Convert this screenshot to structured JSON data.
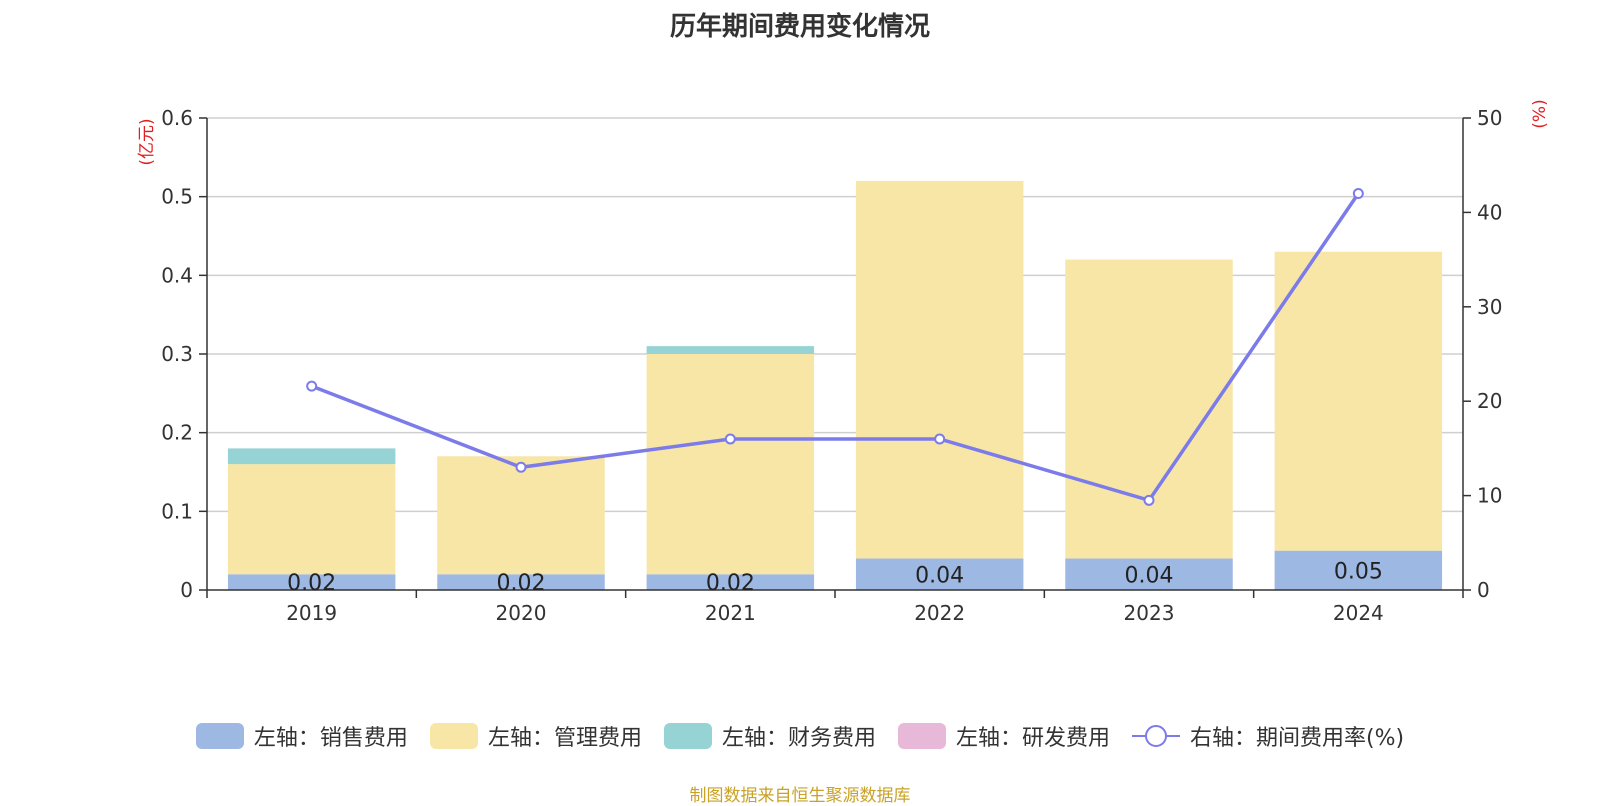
{
  "chart_data": {
    "type": "bar",
    "title": "历年期间费用变化情况",
    "categories": [
      "2019",
      "2020",
      "2021",
      "2022",
      "2023",
      "2024"
    ],
    "left_axis": {
      "unit_label": "(亿元)",
      "ylim": [
        0,
        0.6
      ],
      "ticks": [
        "0",
        "0.1",
        "0.2",
        "0.3",
        "0.4",
        "0.5",
        "0.6"
      ]
    },
    "right_axis": {
      "unit_label": "(%)",
      "ylim": [
        0,
        50
      ],
      "ticks": [
        "0",
        "10",
        "20",
        "30",
        "40",
        "50"
      ]
    },
    "stacked": true,
    "series": [
      {
        "name": "左轴：销售费用",
        "color": "#9db8e2",
        "values": [
          0.02,
          0.02,
          0.02,
          0.04,
          0.04,
          0.05
        ],
        "labels": [
          "0.02",
          "0.02",
          "0.02",
          "0.04",
          "0.04",
          "0.05"
        ]
      },
      {
        "name": "左轴：管理费用",
        "color": "#f7e6a6",
        "values": [
          0.14,
          0.15,
          0.28,
          0.48,
          0.38,
          0.38
        ]
      },
      {
        "name": "左轴：财务费用",
        "color": "#96d3d4",
        "values": [
          0.02,
          0,
          0.01,
          0,
          0,
          0
        ]
      },
      {
        "name": "左轴：研发费用",
        "color": "#e8b8d9",
        "values": [
          0,
          0,
          0,
          0,
          0,
          0
        ]
      }
    ],
    "line_series": {
      "name": "右轴：期间费用率(%)",
      "color": "#7b7bea",
      "axis": "right",
      "values": [
        21.6,
        13.0,
        16.0,
        16.0,
        9.5,
        42.0
      ]
    },
    "grid": true,
    "legend_position": "bottom"
  },
  "source": "制图数据来自恒生聚源数据库"
}
